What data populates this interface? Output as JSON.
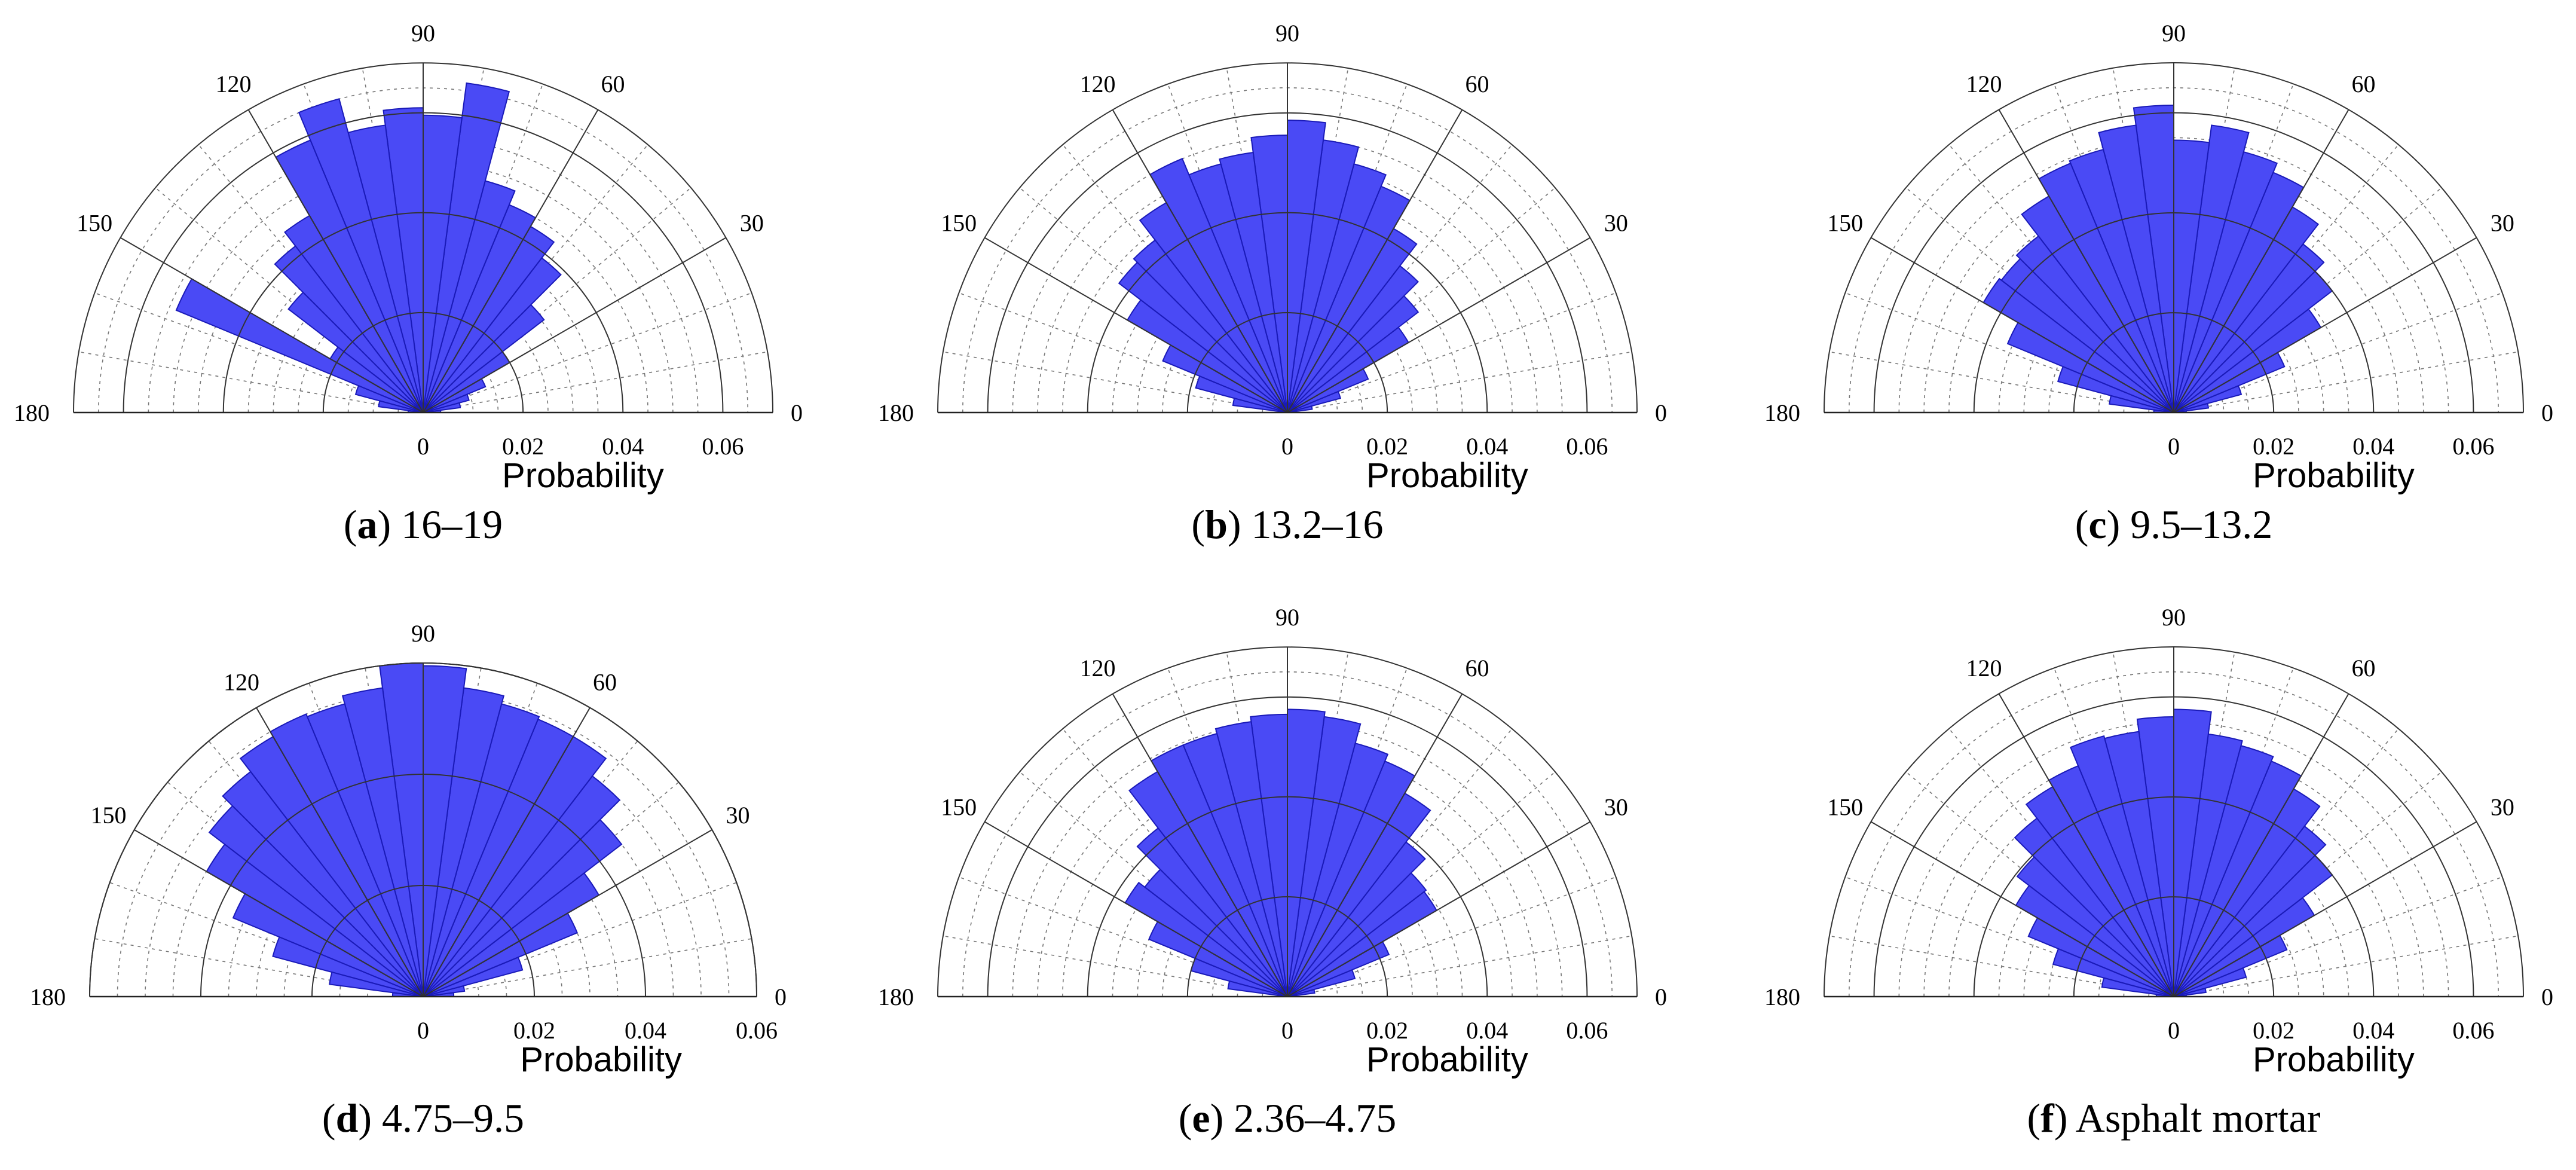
{
  "chart_data": [
    {
      "type": "polar-histogram",
      "caption_letter": "a",
      "caption_text": " 16–19",
      "xlabel": "Probability",
      "r_ticks": [
        0,
        0.02,
        0.04,
        0.06
      ],
      "r_max": 0.07,
      "angle_ticks": [
        0,
        30,
        60,
        90,
        120,
        150,
        180
      ],
      "bin_width_deg": 7.5,
      "bin_centers_deg": [
        3.75,
        11.25,
        18.75,
        26.25,
        33.75,
        41.25,
        48.75,
        56.25,
        63.75,
        71.25,
        78.75,
        86.25,
        93.75,
        101.25,
        108.75,
        116.25,
        123.75,
        131.25,
        138.75,
        146.25,
        153.75,
        161.25,
        168.75,
        176.25
      ],
      "values": [
        0.0035,
        0.0075,
        0.0095,
        0.0135,
        0.02,
        0.0305,
        0.039,
        0.043,
        0.045,
        0.048,
        0.0665,
        0.0595,
        0.061,
        0.058,
        0.065,
        0.059,
        0.0455,
        0.042,
        0.034,
        0.0215,
        0.0535,
        0.014,
        0.009,
        0.003
      ]
    },
    {
      "type": "polar-histogram",
      "caption_letter": "b",
      "caption_text": " 13.2–16",
      "xlabel": "Probability",
      "r_ticks": [
        0,
        0.02,
        0.04,
        0.06
      ],
      "r_max": 0.07,
      "angle_ticks": [
        0,
        30,
        60,
        90,
        120,
        150,
        180
      ],
      "bin_width_deg": 7.5,
      "bin_centers_deg": [
        3.75,
        11.25,
        18.75,
        26.25,
        33.75,
        41.25,
        48.75,
        56.25,
        63.75,
        71.25,
        78.75,
        86.25,
        93.75,
        101.25,
        108.75,
        116.25,
        123.75,
        131.25,
        138.75,
        146.25,
        153.75,
        161.25,
        168.75,
        176.25
      ],
      "values": [
        0.0015,
        0.005,
        0.011,
        0.0175,
        0.028,
        0.033,
        0.037,
        0.0425,
        0.049,
        0.0515,
        0.055,
        0.0585,
        0.0555,
        0.0525,
        0.0515,
        0.055,
        0.0485,
        0.0435,
        0.0425,
        0.037,
        0.027,
        0.019,
        0.011,
        0.0015
      ]
    },
    {
      "type": "polar-histogram",
      "caption_letter": "c",
      "caption_text": " 9.5–13.2",
      "xlabel": "Probability",
      "r_ticks": [
        0,
        0.02,
        0.04,
        0.06
      ],
      "r_max": 0.07,
      "angle_ticks": [
        0,
        30,
        60,
        90,
        120,
        150,
        180
      ],
      "bin_width_deg": 7.5,
      "bin_centers_deg": [
        3.75,
        11.25,
        18.75,
        26.25,
        33.75,
        41.25,
        48.75,
        56.25,
        63.75,
        71.25,
        78.75,
        86.25,
        93.75,
        101.25,
        108.75,
        116.25,
        123.75,
        131.25,
        138.75,
        146.25,
        153.75,
        161.25,
        168.75,
        176.25
      ],
      "values": [
        0.0025,
        0.007,
        0.014,
        0.024,
        0.034,
        0.04,
        0.0425,
        0.0475,
        0.052,
        0.054,
        0.058,
        0.0545,
        0.0615,
        0.058,
        0.0545,
        0.054,
        0.05,
        0.0445,
        0.0435,
        0.044,
        0.036,
        0.024,
        0.013,
        0.004
      ]
    },
    {
      "type": "polar-histogram",
      "caption_letter": "d",
      "caption_text": " 4.75–9.5",
      "xlabel": "Probability",
      "r_ticks": [
        0,
        0.02,
        0.04,
        0.06
      ],
      "r_max": 0.06,
      "angle_ticks": [
        0,
        30,
        60,
        90,
        120,
        150,
        180
      ],
      "bin_width_deg": 7.5,
      "bin_centers_deg": [
        3.75,
        11.25,
        18.75,
        26.25,
        33.75,
        41.25,
        48.75,
        56.25,
        63.75,
        71.25,
        78.75,
        86.25,
        93.75,
        101.25,
        108.75,
        116.25,
        123.75,
        131.25,
        138.75,
        146.25,
        153.75,
        161.25,
        168.75,
        176.25
      ],
      "values": [
        0.0055,
        0.0075,
        0.0185,
        0.03,
        0.0365,
        0.045,
        0.05,
        0.054,
        0.054,
        0.0545,
        0.056,
        0.0595,
        0.06,
        0.056,
        0.0545,
        0.055,
        0.054,
        0.051,
        0.0485,
        0.045,
        0.037,
        0.028,
        0.017,
        0.0055
      ]
    },
    {
      "type": "polar-histogram",
      "caption_letter": "e",
      "caption_text": " 2.36–4.75",
      "xlabel": "Probability",
      "r_ticks": [
        0,
        0.02,
        0.04,
        0.06
      ],
      "r_max": 0.07,
      "angle_ticks": [
        0,
        30,
        60,
        90,
        120,
        150,
        180
      ],
      "bin_width_deg": 7.5,
      "bin_centers_deg": [
        3.75,
        11.25,
        18.75,
        26.25,
        33.75,
        41.25,
        48.75,
        56.25,
        63.75,
        71.25,
        78.75,
        86.25,
        93.75,
        101.25,
        108.75,
        116.25,
        123.75,
        131.25,
        138.75,
        146.25,
        153.75,
        161.25,
        168.75,
        176.25
      ],
      "values": [
        0.0015,
        0.0055,
        0.014,
        0.022,
        0.0345,
        0.035,
        0.039,
        0.047,
        0.051,
        0.0525,
        0.0565,
        0.0575,
        0.0565,
        0.0555,
        0.0545,
        0.0545,
        0.052,
        0.0425,
        0.036,
        0.0375,
        0.03,
        0.02,
        0.012,
        0.002
      ]
    },
    {
      "type": "polar-histogram",
      "caption_letter": "f",
      "caption_text": " Asphalt mortar",
      "xlabel": "Probability",
      "r_ticks": [
        0,
        0.02,
        0.04,
        0.06
      ],
      "r_max": 0.07,
      "angle_ticks": [
        0,
        30,
        60,
        90,
        120,
        150,
        180
      ],
      "bin_width_deg": 7.5,
      "bin_centers_deg": [
        3.75,
        11.25,
        18.75,
        26.25,
        33.75,
        41.25,
        48.75,
        56.25,
        63.75,
        71.25,
        78.75,
        86.25,
        93.75,
        101.25,
        108.75,
        116.25,
        123.75,
        131.25,
        138.75,
        146.25,
        153.75,
        161.25,
        168.75,
        176.25
      ],
      "values": [
        0.0025,
        0.0065,
        0.015,
        0.0245,
        0.0325,
        0.04,
        0.043,
        0.048,
        0.051,
        0.052,
        0.053,
        0.0575,
        0.056,
        0.0535,
        0.054,
        0.05,
        0.0485,
        0.045,
        0.0395,
        0.0365,
        0.0315,
        0.025,
        0.0145,
        0.0035
      ]
    }
  ],
  "colors": {
    "bar_fill": "#4a4af5",
    "bar_edge": "#1a1ab8",
    "grid": "#333333"
  }
}
